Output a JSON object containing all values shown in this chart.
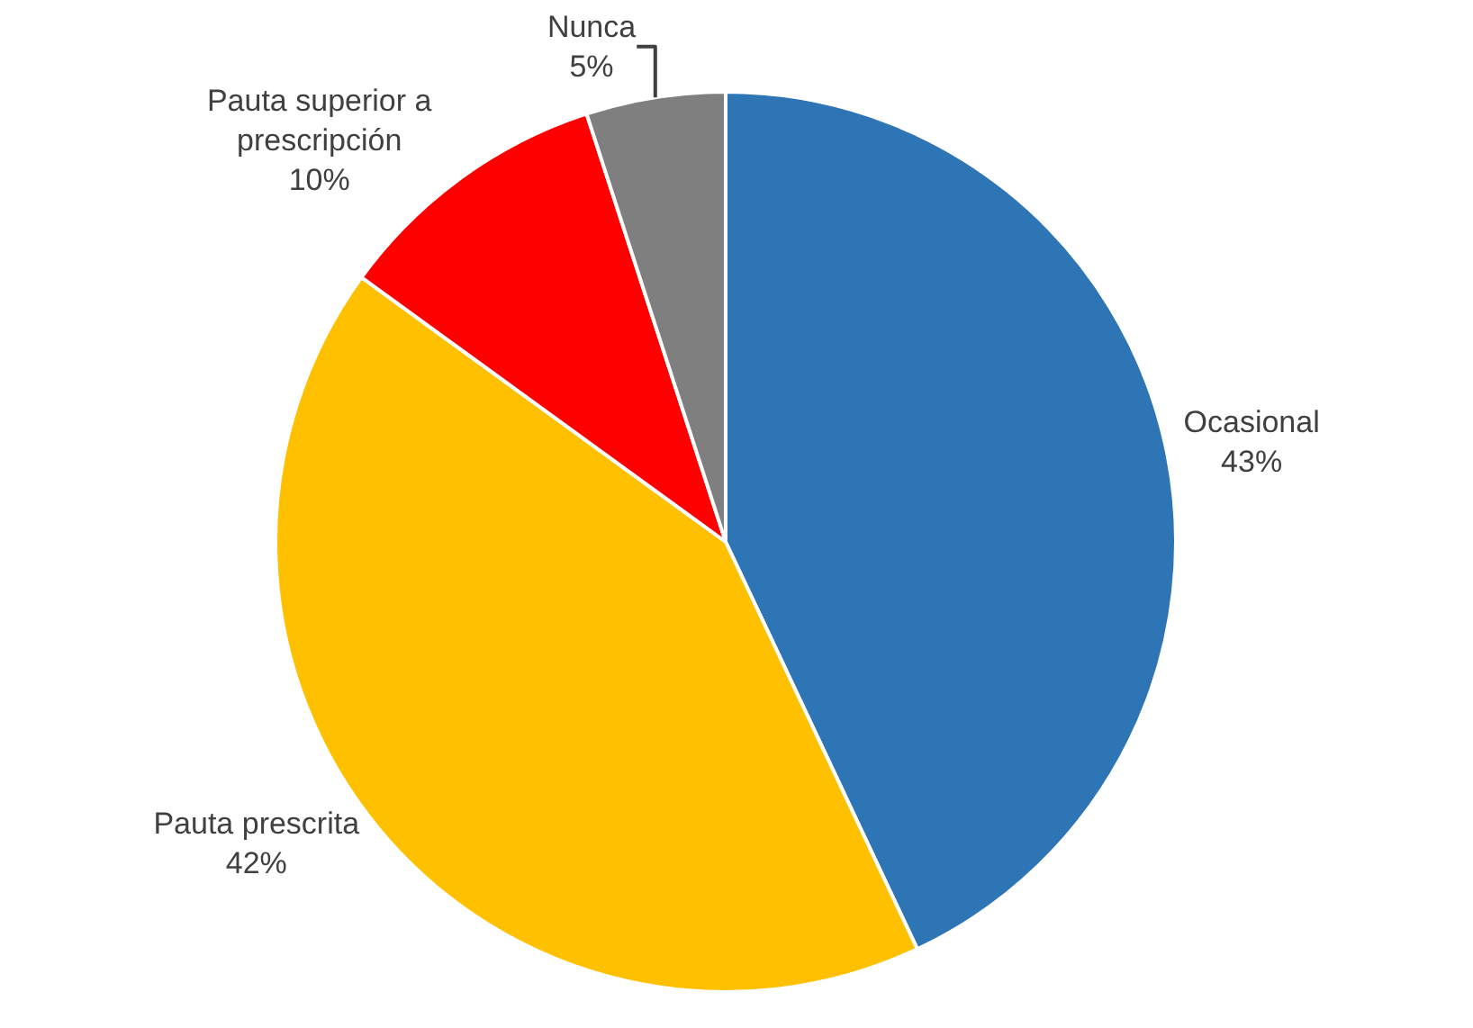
{
  "chart_data": {
    "type": "pie",
    "categories": [
      "Ocasional",
      "Pauta prescrita",
      "Pauta superior a prescripción",
      "Nunca"
    ],
    "values": [
      43,
      42,
      10,
      5
    ],
    "value_labels": [
      "43%",
      "42%",
      "10%",
      "5%"
    ],
    "colors": [
      "#2e75b6",
      "#ffc000",
      "#ff0000",
      "#7f7f7f"
    ],
    "legend": false
  }
}
